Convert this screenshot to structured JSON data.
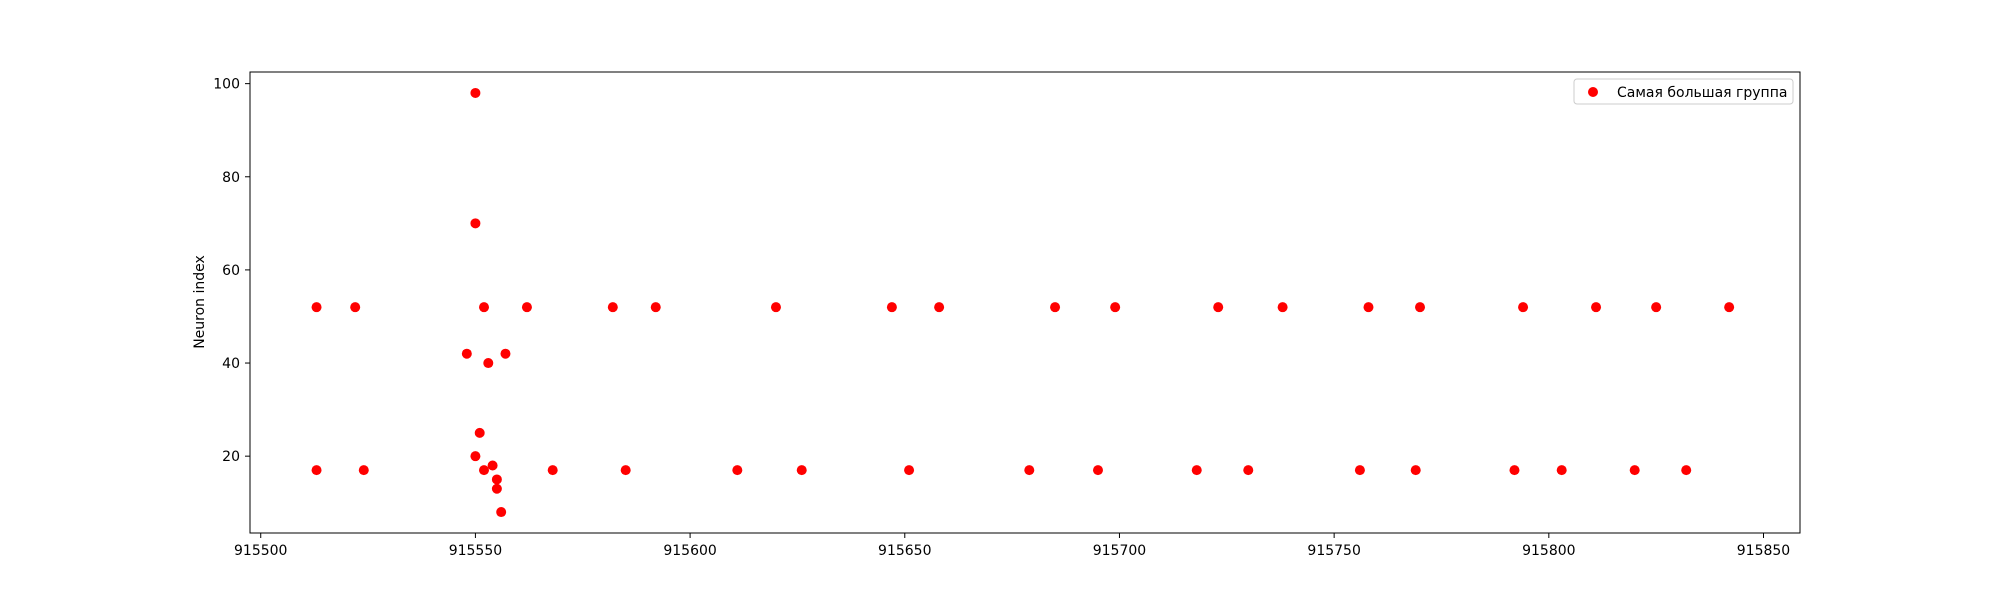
{
  "chart_data": {
    "type": "scatter",
    "title": "",
    "xlabel": "",
    "ylabel": "Neuron index",
    "xlim": [
      915497.5,
      915858.5
    ],
    "ylim": [
      3.5,
      102.5
    ],
    "xticks": [
      915500,
      915550,
      915600,
      915650,
      915700,
      915750,
      915800,
      915850
    ],
    "yticks": [
      20,
      40,
      60,
      80,
      100
    ],
    "grid": false,
    "legend_position": "top-right",
    "series": [
      {
        "name": "Самая большая группа",
        "color": "#ff0000",
        "marker": "circle",
        "points": [
          [
            915513,
            52
          ],
          [
            915522,
            52
          ],
          [
            915552,
            52
          ],
          [
            915562,
            52
          ],
          [
            915582,
            52
          ],
          [
            915592,
            52
          ],
          [
            915620,
            52
          ],
          [
            915647,
            52
          ],
          [
            915658,
            52
          ],
          [
            915685,
            52
          ],
          [
            915699,
            52
          ],
          [
            915723,
            52
          ],
          [
            915738,
            52
          ],
          [
            915758,
            52
          ],
          [
            915770,
            52
          ],
          [
            915794,
            52
          ],
          [
            915811,
            52
          ],
          [
            915825,
            52
          ],
          [
            915842,
            52
          ],
          [
            915513,
            17
          ],
          [
            915524,
            17
          ],
          [
            915552,
            17
          ],
          [
            915568,
            17
          ],
          [
            915585,
            17
          ],
          [
            915611,
            17
          ],
          [
            915626,
            17
          ],
          [
            915651,
            17
          ],
          [
            915679,
            17
          ],
          [
            915695,
            17
          ],
          [
            915718,
            17
          ],
          [
            915730,
            17
          ],
          [
            915756,
            17
          ],
          [
            915769,
            17
          ],
          [
            915792,
            17
          ],
          [
            915803,
            17
          ],
          [
            915820,
            17
          ],
          [
            915832,
            17
          ],
          [
            915550,
            98
          ],
          [
            915550,
            70
          ],
          [
            915548,
            42
          ],
          [
            915557,
            42
          ],
          [
            915553,
            40
          ],
          [
            915551,
            25
          ],
          [
            915550,
            20
          ],
          [
            915554,
            18
          ],
          [
            915555,
            15
          ],
          [
            915555,
            13
          ],
          [
            915556,
            8
          ]
        ]
      }
    ]
  }
}
